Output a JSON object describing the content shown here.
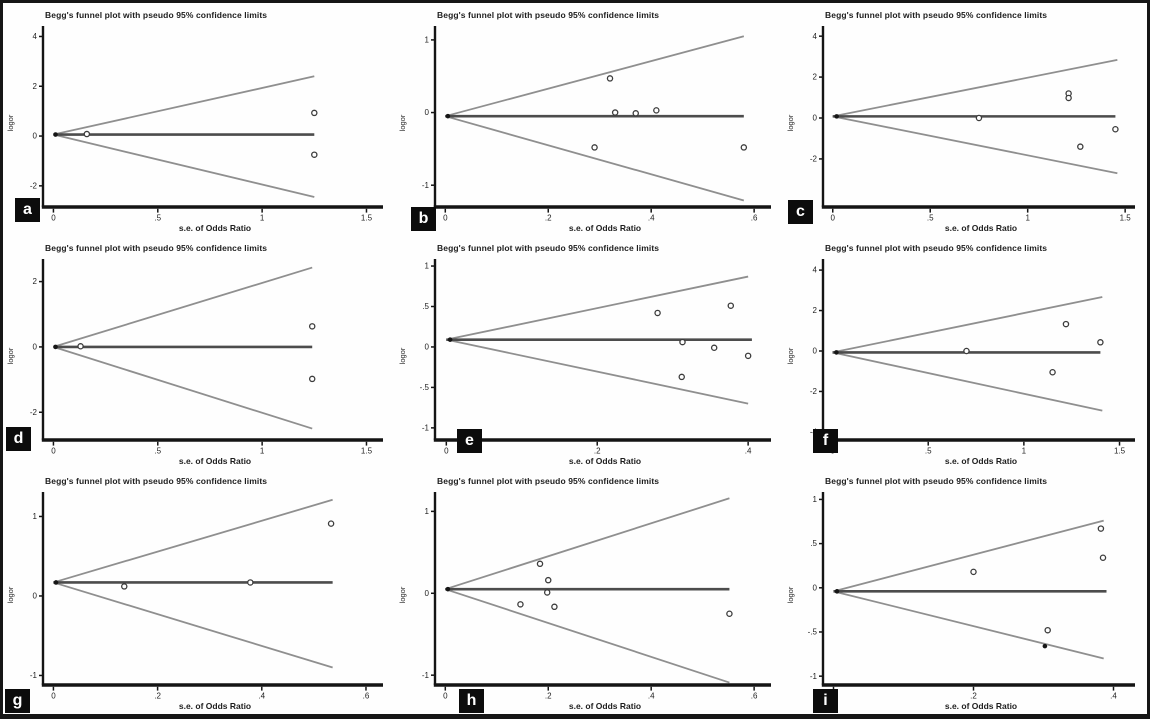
{
  "figure": {
    "background": "#ffffff",
    "border_color": "#161616"
  },
  "chart_data": [
    {
      "label": "a",
      "type": "scatter",
      "title": "Begg's funnel plot with pseudo 95% confidence limits",
      "xlabel": "s.e. of Odds Ratio",
      "ylabel": "logor",
      "xlim": [
        -0.05,
        1.56
      ],
      "ylim": [
        -2.85,
        4.3
      ],
      "xticks": [
        {
          "v": 0,
          "t": "0"
        },
        {
          "v": 0.5,
          "t": ".5"
        },
        {
          "v": 1,
          "t": "1"
        },
        {
          "v": 1.5,
          "t": "1.5"
        }
      ],
      "yticks": [
        {
          "v": -2,
          "t": "-2"
        },
        {
          "v": 0,
          "t": "0"
        },
        {
          "v": 2,
          "t": "2"
        },
        {
          "v": 4,
          "t": "4"
        }
      ],
      "pooled_logor": 0.06,
      "funnel": {
        "x_end": 1.25,
        "upper_end": 2.4,
        "lower_end": -2.45
      },
      "hline_x_end": 1.25,
      "points": [
        {
          "x": 0.01,
          "y": 0.06,
          "solid": true
        },
        {
          "x": 0.16,
          "y": 0.08
        },
        {
          "x": 1.25,
          "y": 0.93
        },
        {
          "x": 1.25,
          "y": -0.75
        }
      ]
    },
    {
      "label": "b",
      "type": "scatter",
      "title": "Begg's funnel plot with pseudo 95% confidence limits",
      "xlabel": "s.e. of Odds Ratio",
      "ylabel": "logor",
      "xlim": [
        -0.02,
        0.625
      ],
      "ylim": [
        -1.3,
        1.15
      ],
      "xticks": [
        {
          "v": 0,
          "t": "0"
        },
        {
          "v": 0.2,
          "t": ".2"
        },
        {
          "v": 0.4,
          "t": ".4"
        },
        {
          "v": 0.6,
          "t": ".6"
        }
      ],
      "yticks": [
        {
          "v": -1,
          "t": "-1"
        },
        {
          "v": 0,
          "t": "0"
        },
        {
          "v": 1,
          "t": "1"
        }
      ],
      "pooled_logor": -0.05,
      "funnel": {
        "x_end": 0.58,
        "upper_end": 1.05,
        "lower_end": -1.21
      },
      "hline_x_end": 0.58,
      "points": [
        {
          "x": 0.005,
          "y": -0.05,
          "solid": true
        },
        {
          "x": 0.32,
          "y": 0.47
        },
        {
          "x": 0.33,
          "y": 0.0
        },
        {
          "x": 0.37,
          "y": -0.01
        },
        {
          "x": 0.41,
          "y": 0.03
        },
        {
          "x": 0.29,
          "y": -0.48
        },
        {
          "x": 0.58,
          "y": -0.48
        }
      ]
    },
    {
      "label": "c",
      "type": "scatter",
      "title": "Begg's funnel plot with pseudo 95% confidence limits",
      "xlabel": "s.e. of Odds Ratio",
      "ylabel": "logor",
      "xlim": [
        -0.05,
        1.53
      ],
      "ylim": [
        -4.35,
        4.35
      ],
      "xticks": [
        {
          "v": 0,
          "t": "0"
        },
        {
          "v": 0.5,
          "t": ".5"
        },
        {
          "v": 1,
          "t": "1"
        },
        {
          "v": 1.5,
          "t": "1.5"
        }
      ],
      "yticks": [
        {
          "v": -2,
          "t": "-2"
        },
        {
          "v": 0,
          "t": "0"
        },
        {
          "v": 2,
          "t": "2"
        },
        {
          "v": 4,
          "t": "4"
        }
      ],
      "pooled_logor": 0.08,
      "funnel": {
        "x_end": 1.46,
        "upper_end": 2.84,
        "lower_end": -2.7
      },
      "hline_x_end": 1.45,
      "points": [
        {
          "x": 0.02,
          "y": 0.08,
          "solid": true
        },
        {
          "x": 0.75,
          "y": 0.0
        },
        {
          "x": 1.21,
          "y": 1.2
        },
        {
          "x": 1.21,
          "y": 0.98
        },
        {
          "x": 1.45,
          "y": -0.55
        },
        {
          "x": 1.27,
          "y": -1.4
        }
      ]
    },
    {
      "label": "d",
      "type": "scatter",
      "title": "Begg's funnel plot with pseudo 95% confidence limits",
      "xlabel": "s.e. of Odds Ratio",
      "ylabel": "logor",
      "xlim": [
        -0.05,
        1.56
      ],
      "ylim": [
        -2.85,
        2.6
      ],
      "xticks": [
        {
          "v": 0,
          "t": "0"
        },
        {
          "v": 0.5,
          "t": ".5"
        },
        {
          "v": 1,
          "t": "1"
        },
        {
          "v": 1.5,
          "t": "1.5"
        }
      ],
      "yticks": [
        {
          "v": -2,
          "t": "-2"
        },
        {
          "v": 0,
          "t": "0"
        },
        {
          "v": 2,
          "t": "2"
        }
      ],
      "pooled_logor": 0.0,
      "funnel": {
        "x_end": 1.24,
        "upper_end": 2.43,
        "lower_end": -2.5
      },
      "hline_x_end": 1.24,
      "points": [
        {
          "x": 0.01,
          "y": 0.0,
          "solid": true
        },
        {
          "x": 0.13,
          "y": 0.02
        },
        {
          "x": 1.24,
          "y": 0.63
        },
        {
          "x": 1.24,
          "y": -0.98
        }
      ]
    },
    {
      "label": "e",
      "type": "scatter",
      "title": "Begg's funnel plot with pseudo 95% confidence limits",
      "xlabel": "s.e. of Odds Ratio",
      "ylabel": "logor",
      "xlim": [
        -0.015,
        0.425
      ],
      "ylim": [
        -1.15,
        1.05
      ],
      "xticks": [
        {
          "v": 0,
          "t": "0"
        },
        {
          "v": 0.2,
          "t": ".2"
        },
        {
          "v": 0.4,
          "t": ".4"
        }
      ],
      "yticks": [
        {
          "v": -1,
          "t": "-1"
        },
        {
          "v": -0.5,
          "t": "-.5"
        },
        {
          "v": 0,
          "t": "0"
        },
        {
          "v": 0.5,
          "t": ".5"
        },
        {
          "v": 1,
          "t": "1"
        }
      ],
      "pooled_logor": 0.09,
      "funnel": {
        "x_end": 0.4,
        "upper_end": 0.87,
        "lower_end": -0.7
      },
      "hline_x_end": 0.405,
      "points": [
        {
          "x": 0.005,
          "y": 0.09,
          "solid": true
        },
        {
          "x": 0.28,
          "y": 0.42
        },
        {
          "x": 0.377,
          "y": 0.51
        },
        {
          "x": 0.313,
          "y": 0.06
        },
        {
          "x": 0.355,
          "y": -0.01
        },
        {
          "x": 0.4,
          "y": -0.11
        },
        {
          "x": 0.312,
          "y": -0.37
        }
      ]
    },
    {
      "label": "f",
      "type": "scatter",
      "title": "Begg's funnel plot with pseudo 95% confidence limits",
      "xlabel": "s.e. of Odds Ratio",
      "ylabel": "logor",
      "xlim": [
        -0.05,
        1.56
      ],
      "ylim": [
        -4.4,
        4.4
      ],
      "xticks": [
        {
          "v": 0,
          "t": "0"
        },
        {
          "v": 0.5,
          "t": ".5"
        },
        {
          "v": 1,
          "t": "1"
        },
        {
          "v": 1.5,
          "t": "1.5"
        }
      ],
      "yticks": [
        {
          "v": -4,
          "t": "-4"
        },
        {
          "v": -2,
          "t": "-2"
        },
        {
          "v": 0,
          "t": "0"
        },
        {
          "v": 2,
          "t": "2"
        },
        {
          "v": 4,
          "t": "4"
        }
      ],
      "pooled_logor": -0.07,
      "funnel": {
        "x_end": 1.41,
        "upper_end": 2.67,
        "lower_end": -2.95
      },
      "hline_x_end": 1.4,
      "points": [
        {
          "x": 0.02,
          "y": -0.07,
          "solid": true
        },
        {
          "x": 0.7,
          "y": 0.0
        },
        {
          "x": 1.22,
          "y": 1.33
        },
        {
          "x": 1.4,
          "y": 0.43
        },
        {
          "x": 1.15,
          "y": -1.05
        }
      ]
    },
    {
      "label": "g",
      "type": "scatter",
      "title": "Begg's funnel plot with pseudo 95% confidence limits",
      "xlabel": "s.e. of Odds Ratio",
      "ylabel": "logor",
      "xlim": [
        -0.02,
        0.625
      ],
      "ylim": [
        -1.12,
        1.27
      ],
      "xticks": [
        {
          "v": 0,
          "t": "0"
        },
        {
          "v": 0.2,
          "t": ".2"
        },
        {
          "v": 0.4,
          "t": ".4"
        },
        {
          "v": 0.6,
          "t": ".6"
        }
      ],
      "yticks": [
        {
          "v": -1,
          "t": "-1"
        },
        {
          "v": 0,
          "t": "0"
        },
        {
          "v": 1,
          "t": "1"
        }
      ],
      "pooled_logor": 0.17,
      "funnel": {
        "x_end": 0.536,
        "upper_end": 1.21,
        "lower_end": -0.9
      },
      "hline_x_end": 0.536,
      "points": [
        {
          "x": 0.005,
          "y": 0.17,
          "solid": true
        },
        {
          "x": 0.136,
          "y": 0.12
        },
        {
          "x": 0.378,
          "y": 0.17
        },
        {
          "x": 0.533,
          "y": 0.91
        }
      ]
    },
    {
      "label": "h",
      "type": "scatter",
      "title": "Begg's funnel plot with pseudo 95% confidence limits",
      "xlabel": "s.e. of Odds Ratio",
      "ylabel": "logor",
      "xlim": [
        -0.02,
        0.625
      ],
      "ylim": [
        -1.12,
        1.2
      ],
      "xticks": [
        {
          "v": 0,
          "t": "0"
        },
        {
          "v": 0.2,
          "t": ".2"
        },
        {
          "v": 0.4,
          "t": ".4"
        },
        {
          "v": 0.6,
          "t": ".6"
        }
      ],
      "yticks": [
        {
          "v": -1,
          "t": "-1"
        },
        {
          "v": 0,
          "t": "0"
        },
        {
          "v": 1,
          "t": "1"
        }
      ],
      "pooled_logor": 0.05,
      "funnel": {
        "x_end": 0.552,
        "upper_end": 1.16,
        "lower_end": -1.09
      },
      "hline_x_end": 0.552,
      "points": [
        {
          "x": 0.005,
          "y": 0.05,
          "solid": true
        },
        {
          "x": 0.184,
          "y": 0.36
        },
        {
          "x": 0.2,
          "y": 0.16
        },
        {
          "x": 0.198,
          "y": 0.01
        },
        {
          "x": 0.146,
          "y": -0.135
        },
        {
          "x": 0.212,
          "y": -0.165
        },
        {
          "x": 0.552,
          "y": -0.25
        }
      ]
    },
    {
      "label": "i",
      "type": "scatter",
      "title": "Begg's funnel plot with pseudo 95% confidence limits",
      "xlabel": "s.e. of Odds Ratio",
      "ylabel": "logor",
      "xlim": [
        -0.015,
        0.425
      ],
      "ylim": [
        -1.1,
        1.05
      ],
      "xticks": [
        {
          "v": 0,
          "t": "0"
        },
        {
          "v": 0.2,
          "t": ".2"
        },
        {
          "v": 0.4,
          "t": ".4"
        }
      ],
      "yticks": [
        {
          "v": -1,
          "t": "-1"
        },
        {
          "v": -0.5,
          "t": "-.5"
        },
        {
          "v": 0,
          "t": "0"
        },
        {
          "v": 0.5,
          "t": ".5"
        },
        {
          "v": 1,
          "t": "1"
        }
      ],
      "pooled_logor": -0.04,
      "funnel": {
        "x_end": 0.386,
        "upper_end": 0.76,
        "lower_end": -0.8
      },
      "hline_x_end": 0.39,
      "points": [
        {
          "x": 0.005,
          "y": -0.04,
          "solid": true
        },
        {
          "x": 0.2,
          "y": 0.18
        },
        {
          "x": 0.382,
          "y": 0.67
        },
        {
          "x": 0.385,
          "y": 0.34
        },
        {
          "x": 0.306,
          "y": -0.48
        },
        {
          "x": 0.302,
          "y": -0.66,
          "solid": true
        }
      ]
    }
  ],
  "style": {
    "funnel_line_color": "#8f8f8f",
    "pooled_line_color": "#4c4c4c",
    "axis_color": "#141414",
    "marker_color": "#3c3c3c"
  }
}
